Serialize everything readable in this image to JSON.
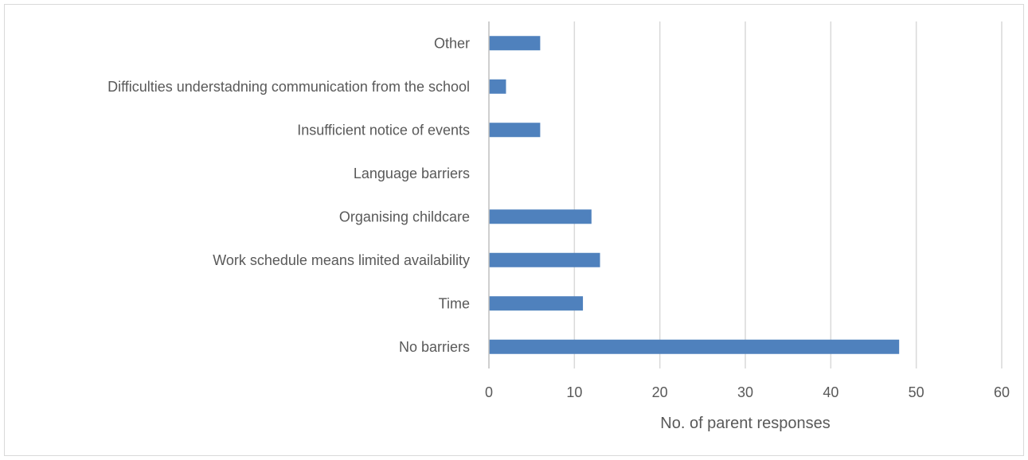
{
  "chart_data": {
    "type": "bar",
    "orientation": "horizontal",
    "categories": [
      "No barriers",
      "Time",
      "Work schedule means limited availability",
      "Organising childcare",
      "Language barriers",
      "Insufficient notice of events",
      "Difficulties understadning communication from the school",
      "Other"
    ],
    "values": [
      48,
      11,
      13,
      12,
      0,
      6,
      2,
      6
    ],
    "title": "",
    "xlabel": "No. of parent responses",
    "ylabel": "",
    "xlim": [
      0,
      60
    ],
    "xticks": [
      0,
      10,
      20,
      30,
      40,
      50,
      60
    ],
    "grid": "vertical",
    "legend": "none",
    "colors": {
      "bar": "#4f81bd",
      "grid": "#d9d9d9",
      "axis": "#bfbfbf",
      "text": "#595959"
    }
  }
}
